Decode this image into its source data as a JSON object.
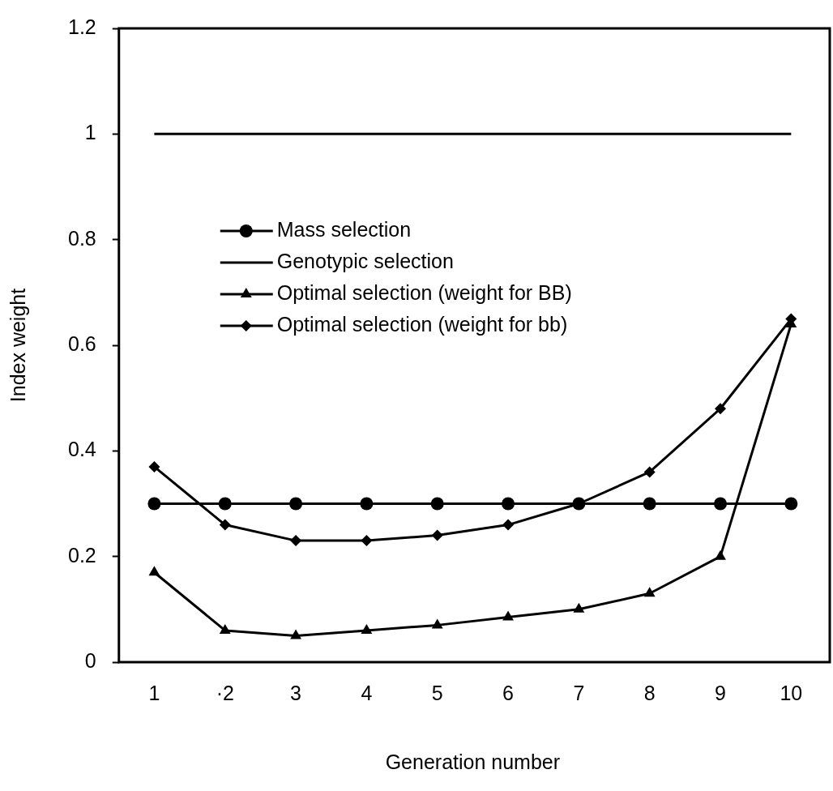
{
  "chart_data": {
    "type": "line",
    "xlabel": "Generation number",
    "ylabel": "Index weight",
    "categories": [
      "1",
      "·2",
      "3",
      "4",
      "5",
      "6",
      "7",
      "8",
      "9",
      "10"
    ],
    "ylim": [
      0,
      1.2
    ],
    "yticks": [
      0,
      0.2,
      0.4,
      0.6,
      0.8,
      1,
      1.2
    ],
    "grid": false,
    "legend": "top left",
    "series": [
      {
        "name": "Mass selection",
        "color": "#000000",
        "marker": "circle",
        "values": [
          0.3,
          0.3,
          0.3,
          0.3,
          0.3,
          0.3,
          0.3,
          0.3,
          0.3,
          0.3
        ]
      },
      {
        "name": "Genotypic selection",
        "color": "#000000",
        "marker": "none",
        "values": [
          1,
          1,
          1,
          1,
          1,
          1,
          1,
          1,
          1,
          1
        ]
      },
      {
        "name": "Optimal selection (weight for BB)",
        "color": "#000000",
        "marker": "triangle",
        "values": [
          0.17,
          0.06,
          0.05,
          0.06,
          0.07,
          0.085,
          0.1,
          0.13,
          0.2,
          0.64
        ]
      },
      {
        "name": "Optimal selection (weight for bb)",
        "color": "#000000",
        "marker": "diamond",
        "values": [
          0.37,
          0.26,
          0.23,
          0.23,
          0.24,
          0.26,
          0.3,
          0.36,
          0.48,
          0.65
        ]
      }
    ]
  }
}
